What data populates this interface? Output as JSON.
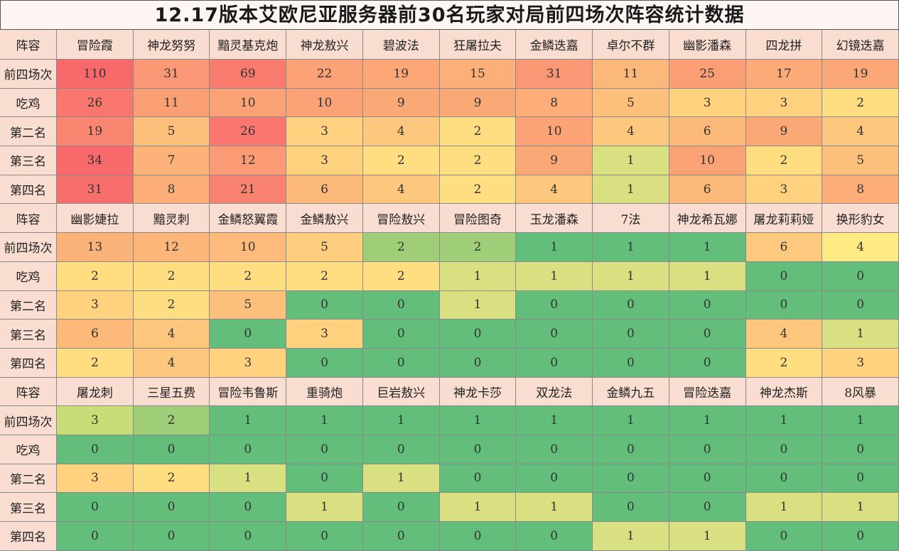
{
  "title": "12.17版本艾欧尼亚服务器前30名玩家对局前四场次阵容统计数据",
  "colors": {
    "header_bg": "#f9ddd0",
    "scale_high": "#f8696b",
    "scale_mid": "#ffeb84",
    "scale_low": "#63be7b"
  },
  "sections": [
    {
      "header_label": "阵容",
      "comps": [
        "冒险霞",
        "神龙努努",
        "黯灵基克炮",
        "神龙敖兴",
        "碧波法",
        "狂屠拉夫",
        "金鳞迭嘉",
        "卓尔不群",
        "幽影潘森",
        "四龙拼",
        "幻镜迭嘉"
      ],
      "rows": [
        {
          "label": "前四场次",
          "values": [
            110,
            31,
            69,
            22,
            19,
            15,
            31,
            11,
            25,
            17,
            19
          ]
        },
        {
          "label": "吃鸡",
          "values": [
            26,
            11,
            10,
            10,
            9,
            9,
            8,
            5,
            3,
            3,
            2
          ]
        },
        {
          "label": "第二名",
          "values": [
            19,
            5,
            26,
            3,
            4,
            2,
            10,
            4,
            6,
            9,
            4
          ]
        },
        {
          "label": "第三名",
          "values": [
            34,
            7,
            12,
            3,
            2,
            2,
            9,
            1,
            10,
            2,
            5
          ]
        },
        {
          "label": "第四名",
          "values": [
            31,
            8,
            21,
            6,
            4,
            2,
            4,
            1,
            6,
            3,
            8
          ]
        }
      ]
    },
    {
      "header_label": "阵容",
      "comps": [
        "幽影婕拉",
        "黯灵刺",
        "金鳞怒翼霞",
        "金鳞敖兴",
        "冒险敖兴",
        "冒险图奇",
        "玉龙潘森",
        "7法",
        "神龙希瓦娜",
        "屠龙莉莉娅",
        "换形豹女"
      ],
      "rows": [
        {
          "label": "前四场次",
          "values": [
            13,
            12,
            10,
            5,
            2,
            2,
            1,
            1,
            1,
            6,
            4
          ]
        },
        {
          "label": "吃鸡",
          "values": [
            2,
            2,
            2,
            2,
            2,
            1,
            1,
            1,
            1,
            0,
            0
          ]
        },
        {
          "label": "第二名",
          "values": [
            3,
            2,
            5,
            0,
            0,
            1,
            0,
            0,
            0,
            0,
            0
          ]
        },
        {
          "label": "第三名",
          "values": [
            6,
            4,
            0,
            3,
            0,
            0,
            0,
            0,
            0,
            4,
            1
          ]
        },
        {
          "label": "第四名",
          "values": [
            2,
            4,
            3,
            0,
            0,
            0,
            0,
            0,
            0,
            2,
            3
          ]
        }
      ]
    },
    {
      "header_label": "阵容",
      "comps": [
        "屠龙刺",
        "三星五费",
        "冒险韦鲁斯",
        "重骑炮",
        "巨岩敖兴",
        "神龙卡莎",
        "双龙法",
        "金鳞九五",
        "冒险迭嘉",
        "神龙杰斯",
        "8风暴"
      ],
      "rows": [
        {
          "label": "前四场次",
          "values": [
            3,
            2,
            1,
            1,
            1,
            1,
            1,
            1,
            1,
            1,
            1
          ]
        },
        {
          "label": "吃鸡",
          "values": [
            0,
            0,
            0,
            0,
            0,
            0,
            0,
            0,
            0,
            0,
            0
          ]
        },
        {
          "label": "第二名",
          "values": [
            3,
            2,
            1,
            0,
            1,
            0,
            0,
            0,
            0,
            0,
            0
          ]
        },
        {
          "label": "第三名",
          "values": [
            0,
            0,
            0,
            1,
            0,
            1,
            1,
            0,
            0,
            1,
            1
          ]
        },
        {
          "label": "第四名",
          "values": [
            0,
            0,
            0,
            0,
            0,
            0,
            0,
            1,
            1,
            0,
            0
          ]
        }
      ]
    }
  ]
}
